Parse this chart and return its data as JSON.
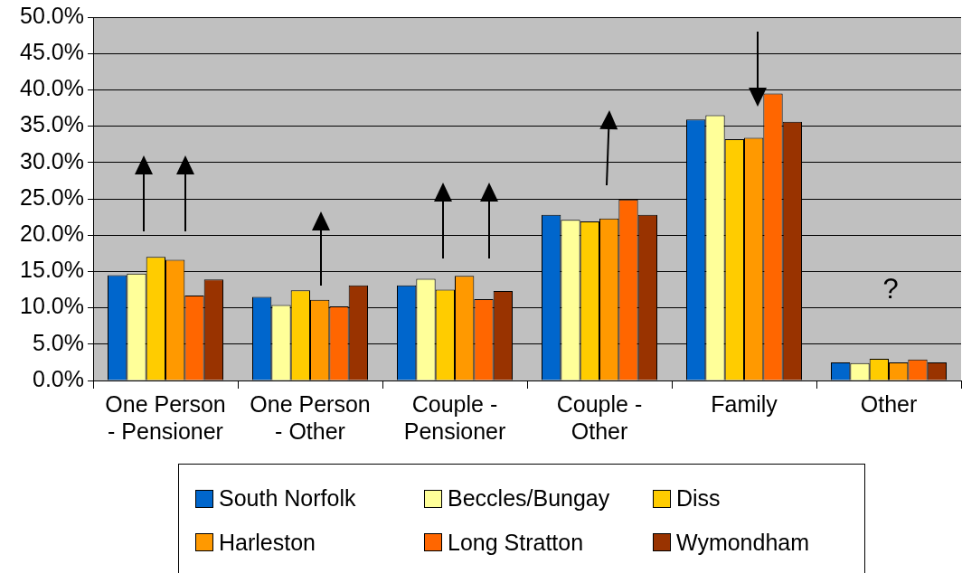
{
  "chart_data": {
    "type": "bar",
    "categories": [
      "One Person - Pensioner",
      "One Person - Other",
      "Couple - Pensioner",
      "Couple - Other",
      "Family",
      "Other"
    ],
    "series": [
      {
        "name": "South Norfolk",
        "color": "#0066cc",
        "values": [
          14.5,
          11.5,
          13.1,
          22.8,
          35.9,
          2.5
        ]
      },
      {
        "name": "Beccles/Bungay",
        "color": "#ffff99",
        "values": [
          14.7,
          10.4,
          14.0,
          22.1,
          36.5,
          2.4
        ]
      },
      {
        "name": "Diss",
        "color": "#ffcc00",
        "values": [
          17.0,
          12.4,
          12.5,
          21.9,
          33.2,
          3.0
        ]
      },
      {
        "name": "Harleston",
        "color": "#ff9900",
        "values": [
          16.6,
          11.1,
          14.4,
          22.3,
          33.4,
          2.5
        ]
      },
      {
        "name": "Long Stratton",
        "color": "#ff6600",
        "values": [
          11.7,
          10.2,
          11.2,
          24.9,
          39.5,
          2.9
        ]
      },
      {
        "name": "Wymondham",
        "color": "#993300",
        "values": [
          13.9,
          13.1,
          12.3,
          22.8,
          35.6,
          2.5
        ]
      }
    ],
    "ylim": [
      0,
      50
    ],
    "yticks": [
      {
        "value": 0,
        "label": "0.0%"
      },
      {
        "value": 5,
        "label": "5.0%"
      },
      {
        "value": 10,
        "label": "10.0%"
      },
      {
        "value": 15,
        "label": "15.0%"
      },
      {
        "value": 20,
        "label": "20.0%"
      },
      {
        "value": 25,
        "label": "25.0%"
      },
      {
        "value": 30,
        "label": "30.0%"
      },
      {
        "value": 35,
        "label": "35.0%"
      },
      {
        "value": 40,
        "label": "40.0%"
      },
      {
        "value": 45,
        "label": "45.0%"
      },
      {
        "value": 50,
        "label": "50.0%"
      }
    ],
    "annotations": [
      "?"
    ],
    "grid": "y",
    "legend": "bottom"
  }
}
